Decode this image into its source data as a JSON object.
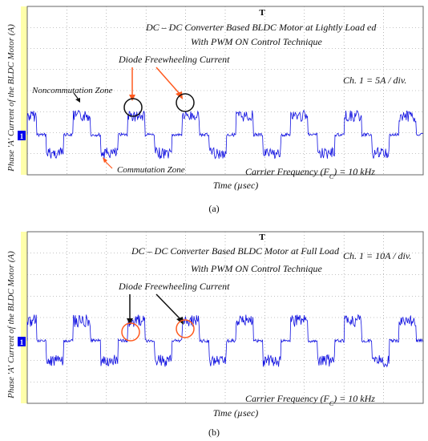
{
  "panels": [
    {
      "letter": "(a)",
      "y_axis_label": "Phase 'A' Current of the BLDC Motor (A)",
      "x_axis_label": "Time (µsec)",
      "title_line1": "DC – DC Converter Based BLDC Motor at Lightly Load ed",
      "title_line2": "With PWM ON Control Technique",
      "channel_scale": "Ch. 1 = 5A / div.",
      "carrier": "Carrier Frequency (F",
      "carrier_sub": "C",
      "carrier_tail": ") = 10 kHz",
      "trigger_marker": "T",
      "channel_marker": "1",
      "annotations": {
        "diode": "Diode Freewheeling Current",
        "noncommutation": "Noncommutation Zone",
        "commutation": "Commutation Zone"
      },
      "colors": {
        "trace": "#1010e0",
        "grid": "#8a8a8a",
        "arrow": "#ff5a1f",
        "circle": "#111111",
        "marker_bar": "#ffffaa"
      }
    },
    {
      "letter": "(b)",
      "y_axis_label": "Phase 'A' Current of the BLDC Motor (A)",
      "x_axis_label": "Time (µsec)",
      "title_line1": "DC – DC Converter Based BLDC Motor at Full Load",
      "title_line2": "With PWM ON Control Technique",
      "channel_scale": "Ch. 1 = 10A / div.",
      "carrier": "Carrier Frequency (F",
      "carrier_sub": "C",
      "carrier_tail": ") = 10 kHz",
      "trigger_marker": "T",
      "channel_marker": "1",
      "annotations": {
        "diode": "Diode Freewheeling Current"
      },
      "colors": {
        "trace": "#1010e0",
        "grid": "#8a8a8a",
        "arrow": "#111111",
        "circle": "#ff5a1f",
        "marker_bar": "#ffffaa"
      }
    }
  ],
  "chart_data": [
    {
      "type": "line",
      "description_of_axes": "oscilloscope capture",
      "grid": "10 x 8 divisions, dotted",
      "series": [
        {
          "values_pattern": "trapezoidal phase current: +1 div plateau, 0, -1 div plateau, 0"
        }
      ],
      "ylim_divs": [
        -4,
        4
      ],
      "xlim_divs": [
        0,
        10
      ]
    },
    {
      "type": "line",
      "grid": "10 x 8 divisions, dotted",
      "series": [
        {
          "values_pattern": "trapezoidal phase current: +1 div plateau, 0, -1 div plateau, 0"
        }
      ],
      "ylim_divs": [
        -4,
        4
      ],
      "xlim_divs": [
        0,
        10
      ]
    }
  ]
}
